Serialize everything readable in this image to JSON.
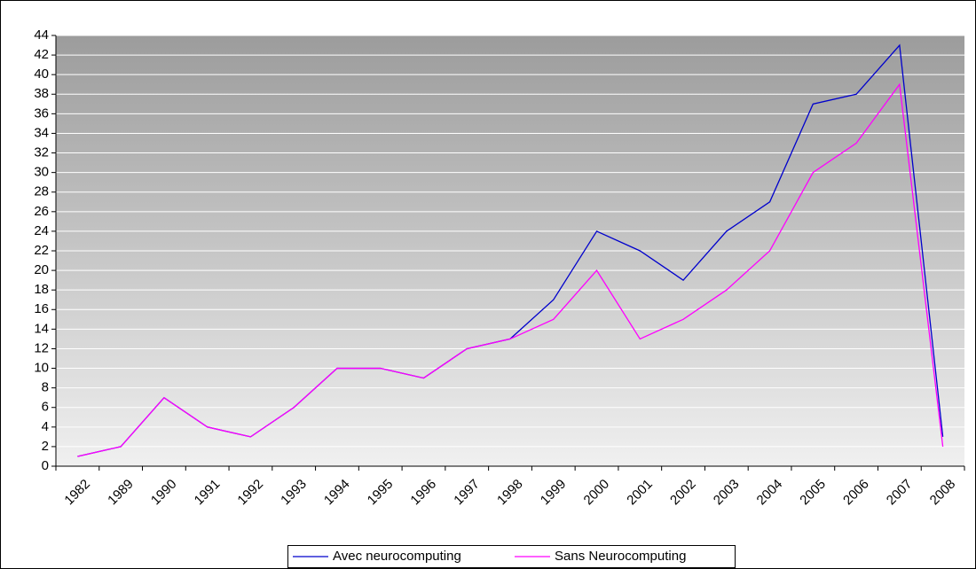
{
  "chart_data": {
    "type": "line",
    "categories": [
      "1982",
      "1989",
      "1990",
      "1991",
      "1992",
      "1993",
      "1994",
      "1995",
      "1996",
      "1997",
      "1998",
      "1999",
      "2000",
      "2001",
      "2002",
      "2003",
      "2004",
      "2005",
      "2006",
      "2007",
      "2008"
    ],
    "series": [
      {
        "name": "Avec neurocomputing",
        "color": "#0000cc",
        "values": [
          1,
          2,
          7,
          4,
          3,
          6,
          10,
          10,
          9,
          12,
          13,
          17,
          24,
          22,
          19,
          24,
          27,
          37,
          38,
          43,
          3
        ]
      },
      {
        "name": "Sans Neurocomputing",
        "color": "#ff00ff",
        "values": [
          1,
          2,
          7,
          4,
          3,
          6,
          10,
          10,
          9,
          12,
          13,
          15,
          20,
          13,
          15,
          18,
          22,
          30,
          33,
          39,
          2
        ]
      }
    ],
    "ylim": [
      0,
      44
    ],
    "yticks": [
      0,
      2,
      4,
      6,
      8,
      10,
      12,
      14,
      16,
      18,
      20,
      22,
      24,
      26,
      28,
      30,
      32,
      34,
      36,
      38,
      40,
      42,
      44
    ],
    "grid": true
  }
}
